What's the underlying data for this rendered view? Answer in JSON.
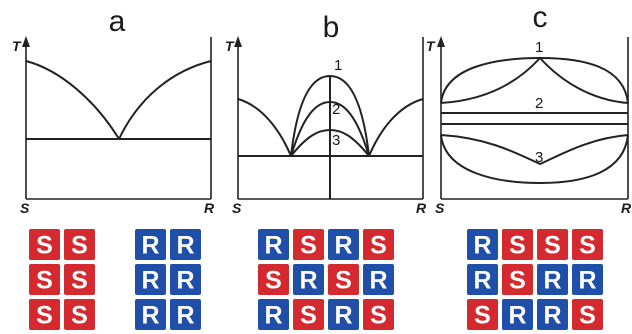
{
  "panels": [
    {
      "letter": "a",
      "y_axis": "T",
      "x_left": "S",
      "x_right": "R",
      "curve_labels": []
    },
    {
      "letter": "b",
      "y_axis": "T",
      "x_left": "S",
      "x_right": "R",
      "curve_labels": [
        "1",
        "2",
        "3"
      ]
    },
    {
      "letter": "c",
      "y_axis": "T",
      "x_left": "S",
      "x_right": "R",
      "curve_labels": [
        "1",
        "2",
        "3"
      ]
    }
  ],
  "colors": {
    "S": "#d42a2f",
    "R": "#1f4fa8",
    "tile_text": "#ffffff",
    "line": "#222222"
  },
  "grids": [
    {
      "name": "grid-s",
      "rows": [
        [
          "S",
          "S"
        ],
        [
          "S",
          "S"
        ],
        [
          "S",
          "S"
        ]
      ]
    },
    {
      "name": "grid-r",
      "rows": [
        [
          "R",
          "R"
        ],
        [
          "R",
          "R"
        ],
        [
          "R",
          "R"
        ]
      ]
    },
    {
      "name": "grid-b",
      "rows": [
        [
          "R",
          "S",
          "R",
          "S"
        ],
        [
          "S",
          "R",
          "S",
          "R"
        ],
        [
          "R",
          "S",
          "R",
          "S"
        ]
      ]
    },
    {
      "name": "grid-c",
      "rows": [
        [
          "R",
          "S",
          "S",
          "S"
        ],
        [
          "R",
          "S",
          "R",
          "R"
        ],
        [
          "S",
          "R",
          "R",
          "S"
        ]
      ]
    }
  ]
}
